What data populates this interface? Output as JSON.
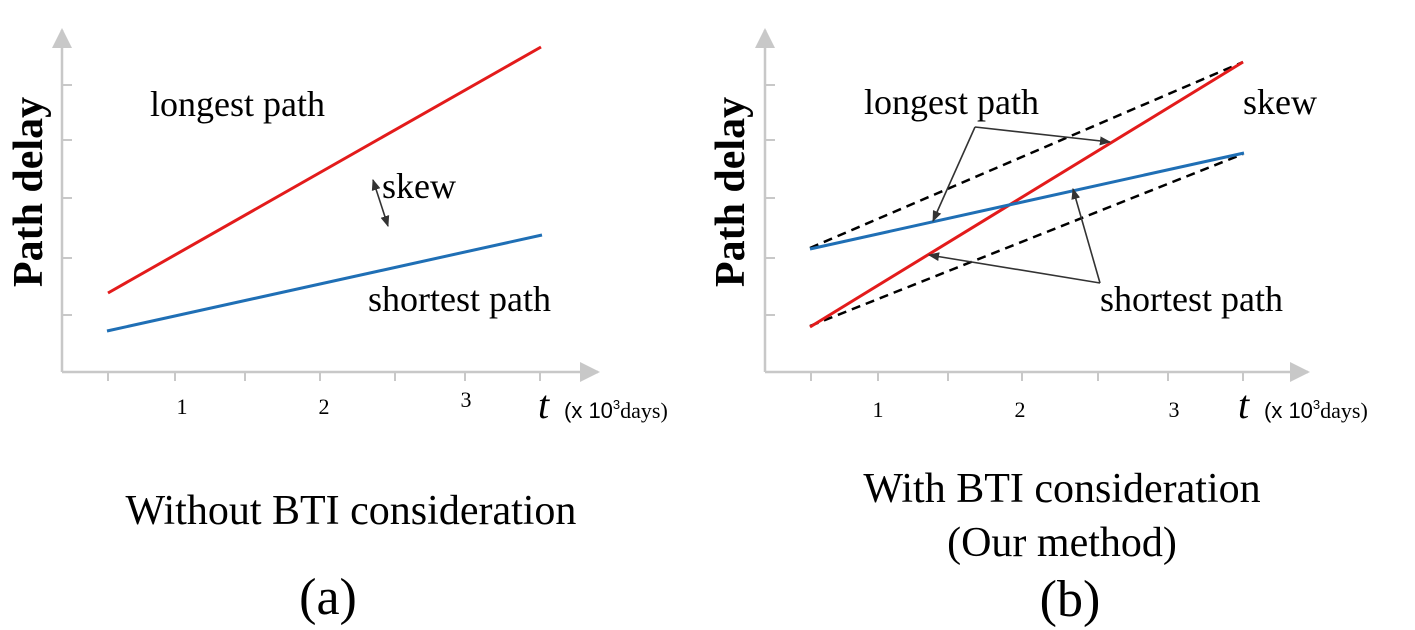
{
  "panel_a": {
    "ylabel": "Path delay",
    "x_var": "t",
    "x_unit_prefix": "(x 10",
    "x_unit_exp": "3",
    "x_unit_suffix": "days)",
    "ticks": [
      "1",
      "2",
      "3"
    ],
    "label_longest": "longest path",
    "label_shortest": "shortest path",
    "label_skew": "skew",
    "caption": "Without BTI consideration",
    "panel_label": "(a)"
  },
  "panel_b": {
    "ylabel": "Path delay",
    "x_var": "t",
    "x_unit_prefix": "(x 10",
    "x_unit_exp": "3",
    "x_unit_suffix": "days)",
    "ticks": [
      "1",
      "2",
      "3"
    ],
    "label_longest": "longest path",
    "label_shortest": "shortest path",
    "label_skew": "skew",
    "caption_line1": "With BTI consideration",
    "caption_line2": "(Our method)",
    "panel_label": "(b)"
  },
  "colors": {
    "axis": "#c8c8c8",
    "longest": "#e31b1b",
    "shortest": "#1f6fb5",
    "dashed": "#000000",
    "arrow": "#333333"
  }
}
